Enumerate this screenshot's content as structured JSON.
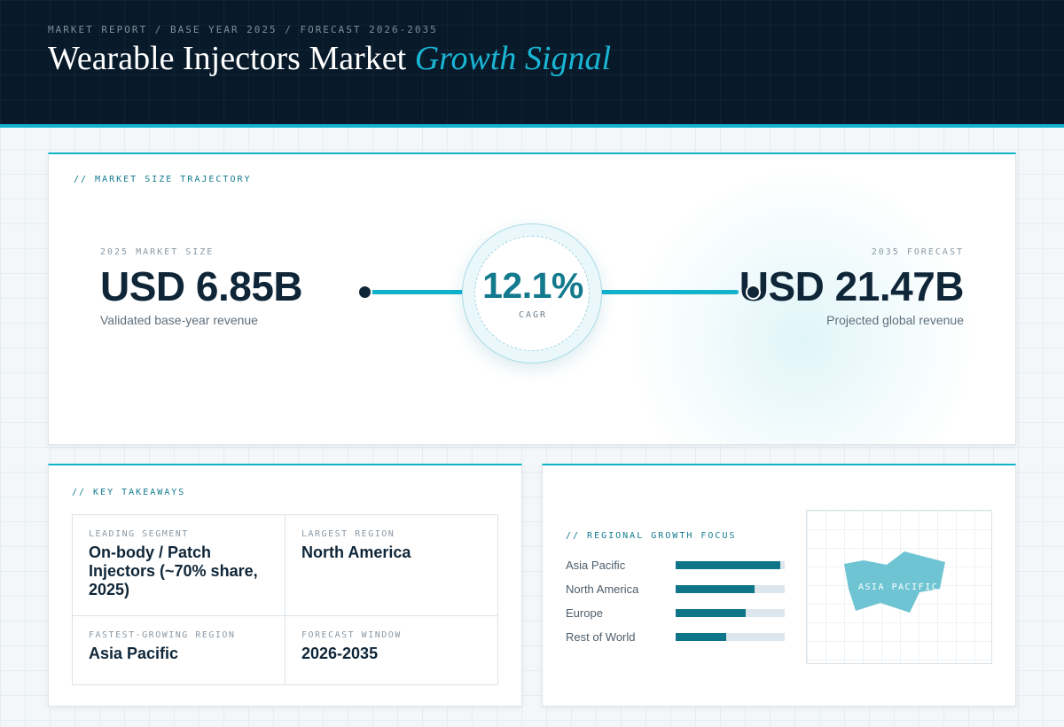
{
  "header": {
    "breadcrumb": "MARKET REPORT / BASE YEAR 2025 / FORECAST 2026-2035",
    "title": "Wearable Injectors Market",
    "title_accent": "Growth Signal"
  },
  "trajectory": {
    "section_label": "// MARKET SIZE TRAJECTORY",
    "base": {
      "label": "2025 MARKET SIZE",
      "value": "USD 6.85B",
      "caption": "Validated base-year revenue"
    },
    "cagr": {
      "value": "12.1%",
      "label": "CAGR"
    },
    "forecast": {
      "label": "2035 FORECAST",
      "value": "USD 21.47B",
      "caption": "Projected global revenue"
    }
  },
  "takeaways": {
    "section_label": "// KEY TAKEAWAYS",
    "items": [
      {
        "label": "LEADING SEGMENT",
        "value": "On-body / Patch Injectors (~70% share, 2025)"
      },
      {
        "label": "LARGEST REGION",
        "value": "North America"
      },
      {
        "label": "FASTEST-GROWING REGION",
        "value": "Asia Pacific"
      },
      {
        "label": "FORECAST WINDOW",
        "value": "2026-2035"
      }
    ]
  },
  "regional": {
    "section_label": "// REGIONAL GROWTH FOCUS",
    "bars": [
      {
        "name": "Asia Pacific",
        "level": 0.96
      },
      {
        "name": "North America",
        "level": 0.72
      },
      {
        "name": "Europe",
        "level": 0.64
      },
      {
        "name": "Rest of World",
        "level": 0.46
      }
    ],
    "map_label": "ASIA PACIFIC"
  },
  "colors": {
    "accent": "#11b3cc",
    "header_bg": "#081a2a",
    "bar_fill": "#0e7688",
    "map_shape": "#6ec4d2"
  }
}
